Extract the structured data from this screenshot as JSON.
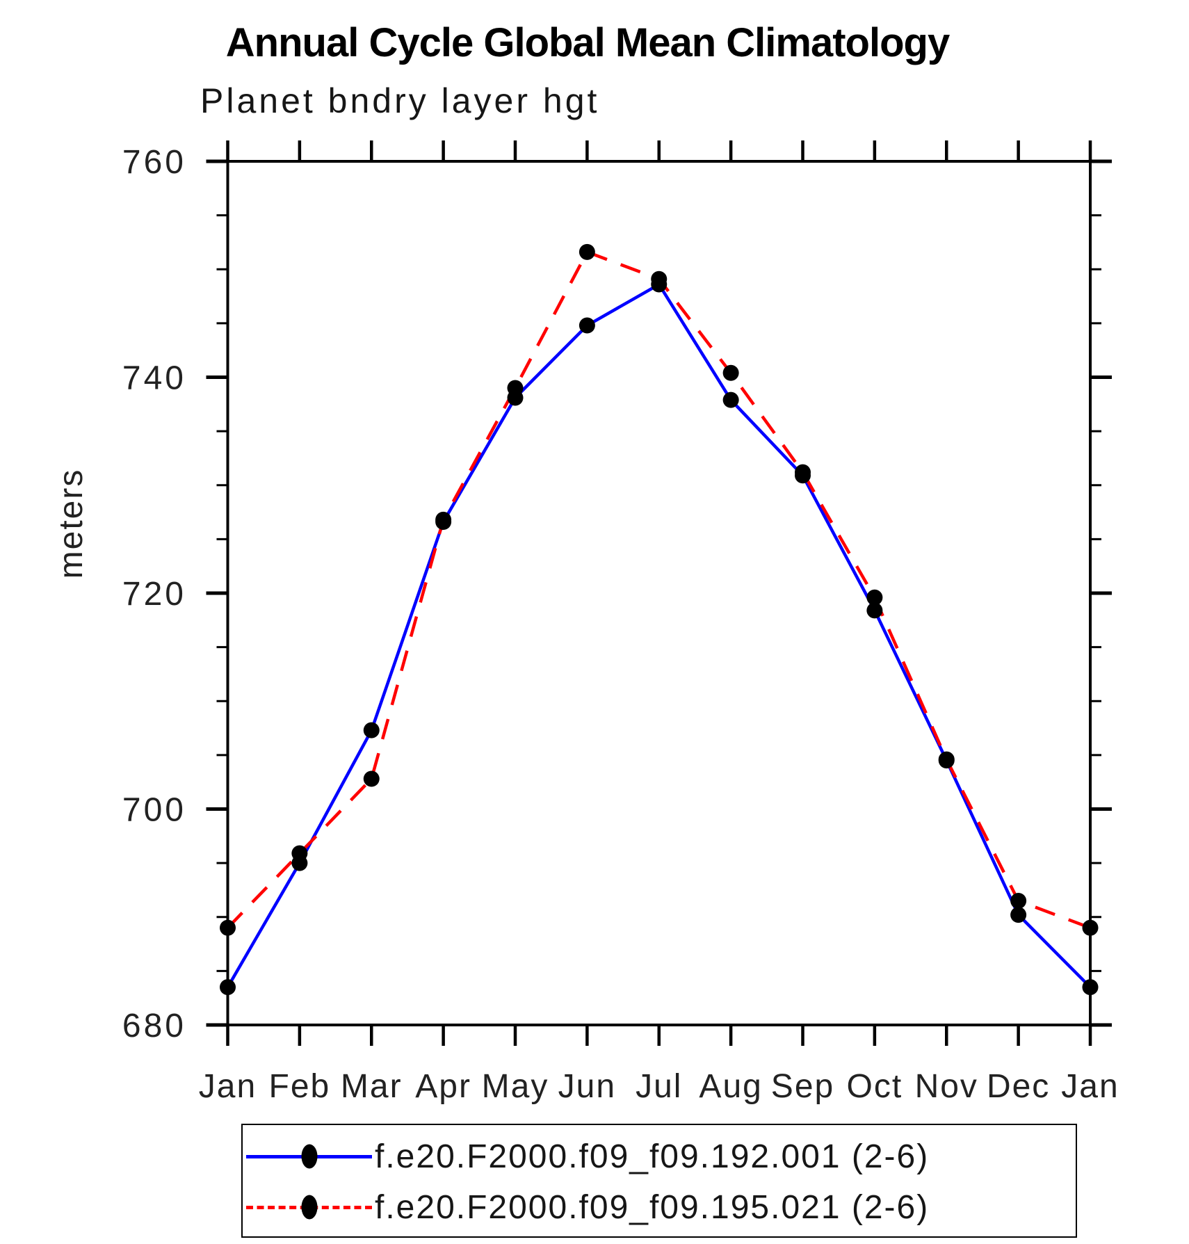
{
  "title": "Annual Cycle Global Mean Climatology",
  "subtitle": "Planet bndry layer hgt",
  "chart_data": {
    "type": "line",
    "title": "Annual Cycle Global Mean Climatology",
    "subtitle": "Planet bndry layer hgt",
    "xlabel": "",
    "ylabel": "meters",
    "ylim": [
      680,
      760
    ],
    "ytick_major": [
      680,
      700,
      720,
      740,
      760
    ],
    "ytick_minor_step": 5,
    "grid": false,
    "legend_position": "bottom",
    "categories": [
      "Jan",
      "Feb",
      "Mar",
      "Apr",
      "May",
      "Jun",
      "Jul",
      "Aug",
      "Sep",
      "Oct",
      "Nov",
      "Dec",
      "Jan"
    ],
    "series": [
      {
        "name": "f.e20.F2000.f09_f09.192.001 (2-6)",
        "color": "#0000ff",
        "line_style": "solid",
        "marker": "filled-circle",
        "marker_color": "#000000",
        "values": [
          683.5,
          695.0,
          707.3,
          726.6,
          738.1,
          744.8,
          748.6,
          737.9,
          730.9,
          718.4,
          704.5,
          690.2,
          683.5
        ]
      },
      {
        "name": "f.e20.F2000.f09_f09.195.021 (2-6)",
        "color": "#ff0000",
        "line_style": "dashed",
        "marker": "filled-circle",
        "marker_color": "#000000",
        "values": [
          689.0,
          695.9,
          702.8,
          726.8,
          739.0,
          751.6,
          749.1,
          740.4,
          731.2,
          719.6,
          704.6,
          691.5,
          689.0
        ]
      }
    ]
  }
}
